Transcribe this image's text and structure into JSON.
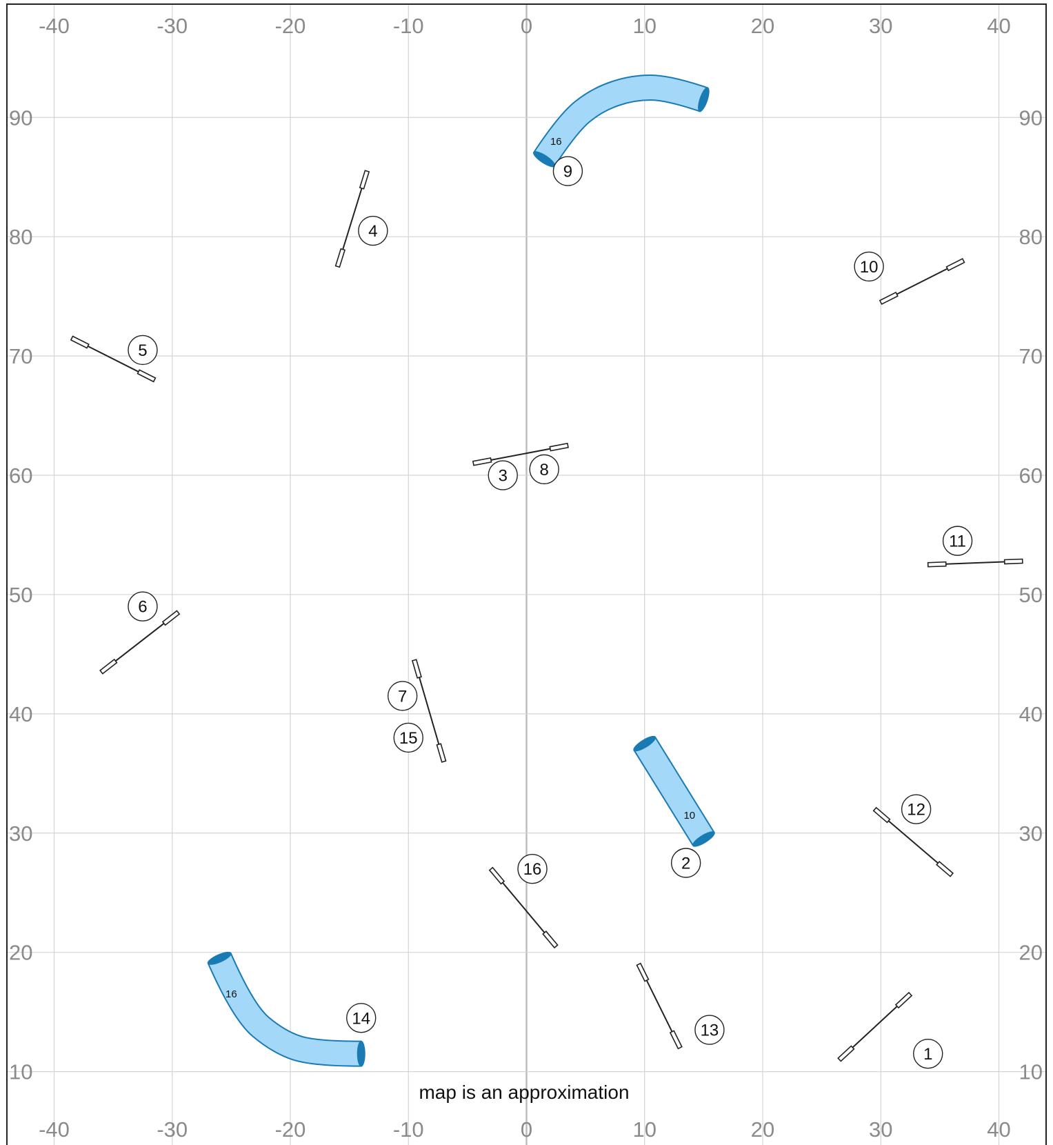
{
  "map": {
    "note": "map is an approximation",
    "x_ticks": [
      -40,
      -30,
      -20,
      -10,
      0,
      10,
      20,
      30,
      40
    ],
    "y_ticks": [
      10,
      20,
      30,
      40,
      50,
      60,
      70,
      80,
      90
    ],
    "x_range": [
      -44,
      44
    ],
    "y_range": [
      3.5,
      99.5
    ],
    "colors": {
      "grid": "#d4d4d4",
      "axis": "#bdbdbd",
      "tunnel_fill": "#a3d8f8",
      "tunnel_edge": "#1a7ab4",
      "jump": "#222222"
    }
  },
  "course": {
    "jumps": [
      {
        "numbers": [
          "1"
        ],
        "from": [
          26.5,
          11
        ],
        "to": [
          32.5,
          16.5
        ],
        "labels_at": [
          [
            34,
            11.5
          ]
        ]
      },
      {
        "numbers": [
          "3",
          "8"
        ],
        "from": [
          -4.5,
          61
        ],
        "to": [
          3.5,
          62.5
        ],
        "labels_at": [
          [
            -2,
            60
          ],
          [
            1.5,
            60.5
          ]
        ]
      },
      {
        "numbers": [
          "4"
        ],
        "from": [
          -16,
          77.5
        ],
        "to": [
          -13.5,
          85.5
        ],
        "labels_at": [
          [
            -13,
            80.5
          ]
        ]
      },
      {
        "numbers": [
          "5"
        ],
        "from": [
          -38.5,
          71.5
        ],
        "to": [
          -31.5,
          68
        ],
        "labels_at": [
          [
            -32.5,
            70.5
          ]
        ]
      },
      {
        "numbers": [
          "6"
        ],
        "from": [
          -36,
          43.5
        ],
        "to": [
          -29.5,
          48.5
        ],
        "labels_at": [
          [
            -32.5,
            49
          ]
        ]
      },
      {
        "numbers": [
          "7",
          "15"
        ],
        "from": [
          -9.5,
          44.5
        ],
        "to": [
          -7,
          36
        ],
        "labels_at": [
          [
            -10.5,
            41.5
          ],
          [
            -10,
            38
          ]
        ]
      },
      {
        "numbers": [
          "10"
        ],
        "from": [
          30,
          74.5
        ],
        "to": [
          37,
          78
        ],
        "labels_at": [
          [
            29,
            77.5
          ]
        ]
      },
      {
        "numbers": [
          "11"
        ],
        "from": [
          34,
          52.5
        ],
        "to": [
          42,
          52.8
        ],
        "labels_at": [
          [
            36.5,
            54.5
          ]
        ]
      },
      {
        "numbers": [
          "12"
        ],
        "from": [
          29.5,
          32
        ],
        "to": [
          36,
          26.5
        ],
        "labels_at": [
          [
            33,
            32
          ]
        ]
      },
      {
        "numbers": [
          "13"
        ],
        "from": [
          9.5,
          19
        ],
        "to": [
          13,
          12
        ],
        "labels_at": [
          [
            15.5,
            13.5
          ]
        ]
      },
      {
        "numbers": [
          "16"
        ],
        "from": [
          -3,
          27
        ],
        "to": [
          2.5,
          20.5
        ],
        "labels_at": [
          [
            0.5,
            27
          ]
        ]
      }
    ],
    "tunnels": [
      {
        "numbers": [
          "9"
        ],
        "length": "16",
        "path": [
          [
            1.5,
            86.5
          ],
          [
            3.5,
            89.5
          ],
          [
            6,
            91.5
          ],
          [
            9,
            92.5
          ],
          [
            12,
            92.5
          ],
          [
            15,
            91.5
          ]
        ],
        "length_at": [
          2.5,
          88
        ],
        "labels_at": [
          [
            3.5,
            85.5
          ]
        ]
      },
      {
        "numbers": [
          "2"
        ],
        "length": "10",
        "path": [
          [
            10,
            37.5
          ],
          [
            15,
            29.5
          ]
        ],
        "length_at": [
          13.8,
          31.5
        ],
        "labels_at": [
          [
            13.5,
            27.5
          ]
        ]
      },
      {
        "numbers": [
          "14"
        ],
        "length": "16",
        "path": [
          [
            -26,
            19.5
          ],
          [
            -24,
            15
          ],
          [
            -21,
            12.5
          ],
          [
            -18,
            11.5
          ],
          [
            -14,
            11.5
          ]
        ],
        "length_at": [
          -25,
          16.5
        ],
        "labels_at": [
          [
            -14,
            14.5
          ]
        ]
      }
    ]
  }
}
